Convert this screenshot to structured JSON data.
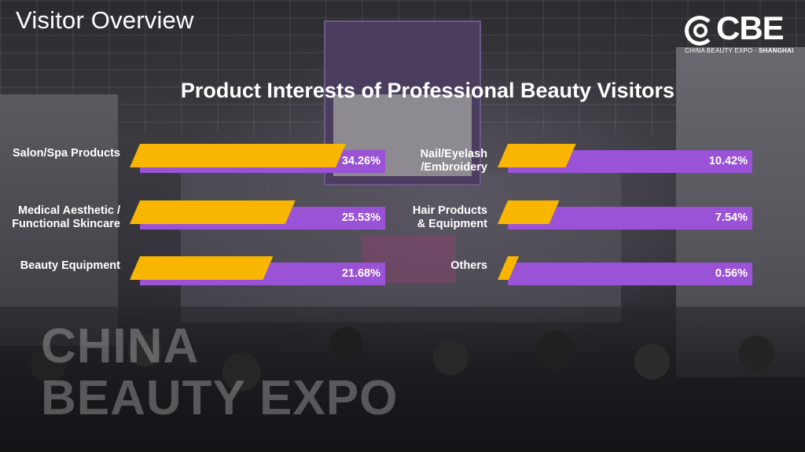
{
  "page": {
    "title": "Visitor Overview"
  },
  "logo": {
    "wordmark": "CBE",
    "subtitle_main": "CHINA BEAUTY EXPO - ",
    "subtitle_city": "SHANGHAI"
  },
  "watermark": {
    "line1": "CHINA",
    "line2": "BEAUTY EXPO"
  },
  "colors": {
    "accent": "#f8b600",
    "track": "#9a52d6",
    "text": "#ffffff"
  },
  "chart_data": {
    "type": "bar",
    "orientation": "horizontal",
    "title": "Product Interests of Professional Beauty Visitors",
    "unit": "%",
    "xlim": [
      0,
      40
    ],
    "grid": false,
    "columns": [
      {
        "items": [
          {
            "label_lines": [
              "Salon/Spa Products"
            ],
            "value": 34.26,
            "value_text": "34.26%"
          },
          {
            "label_lines": [
              "Medical Aesthetic /",
              "Functional Skincare"
            ],
            "value": 25.53,
            "value_text": "25.53%"
          },
          {
            "label_lines": [
              "Beauty Equipment"
            ],
            "value": 21.68,
            "value_text": "21.68%"
          }
        ]
      },
      {
        "items": [
          {
            "label_lines": [
              "Nail/Eyelash",
              "/Embroidery"
            ],
            "value": 10.42,
            "value_text": "10.42%"
          },
          {
            "label_lines": [
              "Hair Products",
              "& Equipment"
            ],
            "value": 7.54,
            "value_text": "7.54%"
          },
          {
            "label_lines": [
              "Others"
            ],
            "value": 0.56,
            "value_text": "0.56%"
          }
        ]
      }
    ]
  }
}
